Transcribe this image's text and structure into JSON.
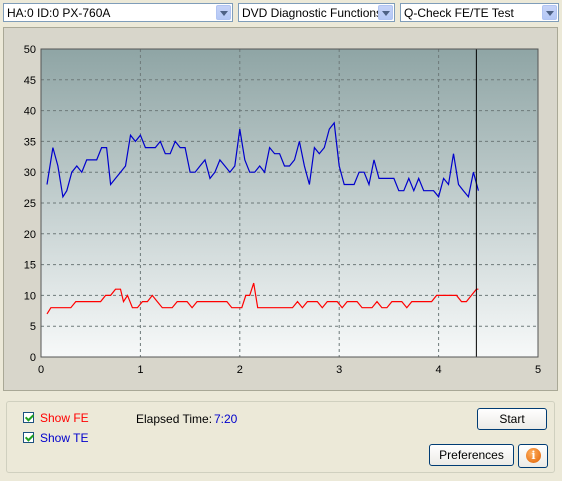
{
  "dropdowns": {
    "drive": "HA:0 ID:0  PX-760A",
    "function": "DVD Diagnostic Functions",
    "test": "Q-Check FE/TE Test"
  },
  "controls": {
    "show_fe_label": "Show FE",
    "show_fe_checked": true,
    "show_te_label": "Show TE",
    "show_te_checked": true,
    "elapsed_label": "Elapsed Time:",
    "elapsed_value": "7:20",
    "start_label": "Start",
    "preferences_label": "Preferences",
    "info_icon": "info-icon"
  },
  "colors": {
    "fe": "#ff0000",
    "te": "#0000cc",
    "plot_top": "#8fa5a5",
    "plot_bottom": "#f7f9f9",
    "value_text": "#0000cc"
  },
  "chart_data": {
    "type": "line",
    "xlim": [
      0,
      5
    ],
    "ylim": [
      0,
      50
    ],
    "x_ticks": [
      "0",
      "1",
      "2",
      "3",
      "4",
      "5"
    ],
    "y_ticks": [
      "0",
      "5",
      "10",
      "15",
      "20",
      "25",
      "30",
      "35",
      "40",
      "45",
      "50"
    ],
    "grid": true,
    "end_marker_x": 4.38,
    "series": [
      {
        "key": "te",
        "points": [
          [
            0.06,
            28
          ],
          [
            0.12,
            34
          ],
          [
            0.17,
            31
          ],
          [
            0.22,
            26
          ],
          [
            0.26,
            27
          ],
          [
            0.31,
            30
          ],
          [
            0.36,
            31
          ],
          [
            0.41,
            30
          ],
          [
            0.46,
            32
          ],
          [
            0.51,
            32
          ],
          [
            0.56,
            32
          ],
          [
            0.61,
            34
          ],
          [
            0.66,
            34
          ],
          [
            0.7,
            28
          ],
          [
            0.75,
            29
          ],
          [
            0.8,
            30
          ],
          [
            0.85,
            31
          ],
          [
            0.9,
            36
          ],
          [
            0.95,
            35
          ],
          [
            1.0,
            36
          ],
          [
            1.05,
            34
          ],
          [
            1.1,
            34
          ],
          [
            1.15,
            34
          ],
          [
            1.2,
            35
          ],
          [
            1.25,
            33
          ],
          [
            1.3,
            33
          ],
          [
            1.35,
            35
          ],
          [
            1.4,
            34
          ],
          [
            1.45,
            34
          ],
          [
            1.5,
            30
          ],
          [
            1.55,
            30
          ],
          [
            1.6,
            31
          ],
          [
            1.65,
            32
          ],
          [
            1.7,
            29
          ],
          [
            1.75,
            30
          ],
          [
            1.8,
            32
          ],
          [
            1.85,
            31
          ],
          [
            1.9,
            30
          ],
          [
            1.95,
            31
          ],
          [
            2.0,
            37
          ],
          [
            2.05,
            32
          ],
          [
            2.1,
            30
          ],
          [
            2.15,
            30
          ],
          [
            2.2,
            31
          ],
          [
            2.25,
            30
          ],
          [
            2.3,
            34
          ],
          [
            2.35,
            33
          ],
          [
            2.4,
            33
          ],
          [
            2.45,
            31
          ],
          [
            2.5,
            31
          ],
          [
            2.55,
            32
          ],
          [
            2.6,
            35
          ],
          [
            2.65,
            31
          ],
          [
            2.7,
            28
          ],
          [
            2.75,
            34
          ],
          [
            2.8,
            33
          ],
          [
            2.85,
            34
          ],
          [
            2.9,
            37
          ],
          [
            2.95,
            38
          ],
          [
            3.0,
            31
          ],
          [
            3.05,
            28
          ],
          [
            3.1,
            28
          ],
          [
            3.15,
            28
          ],
          [
            3.2,
            30
          ],
          [
            3.25,
            30
          ],
          [
            3.3,
            28
          ],
          [
            3.35,
            32
          ],
          [
            3.4,
            29
          ],
          [
            3.45,
            29
          ],
          [
            3.5,
            29
          ],
          [
            3.55,
            29
          ],
          [
            3.6,
            27
          ],
          [
            3.65,
            27
          ],
          [
            3.7,
            29
          ],
          [
            3.75,
            27
          ],
          [
            3.8,
            29
          ],
          [
            3.85,
            27
          ],
          [
            3.9,
            27
          ],
          [
            3.95,
            27
          ],
          [
            4.0,
            26
          ],
          [
            4.05,
            29
          ],
          [
            4.1,
            28
          ],
          [
            4.15,
            33
          ],
          [
            4.2,
            28
          ],
          [
            4.25,
            27
          ],
          [
            4.3,
            26
          ],
          [
            4.35,
            30
          ],
          [
            4.4,
            27
          ]
        ]
      },
      {
        "key": "fe",
        "points": [
          [
            0.06,
            7
          ],
          [
            0.1,
            8
          ],
          [
            0.15,
            8
          ],
          [
            0.2,
            8
          ],
          [
            0.25,
            8
          ],
          [
            0.3,
            8
          ],
          [
            0.35,
            9
          ],
          [
            0.4,
            9
          ],
          [
            0.45,
            9
          ],
          [
            0.5,
            9
          ],
          [
            0.55,
            9
          ],
          [
            0.6,
            9
          ],
          [
            0.65,
            10
          ],
          [
            0.7,
            10
          ],
          [
            0.75,
            11
          ],
          [
            0.8,
            11
          ],
          [
            0.83,
            9
          ],
          [
            0.87,
            10
          ],
          [
            0.92,
            8
          ],
          [
            0.97,
            8
          ],
          [
            1.02,
            9
          ],
          [
            1.07,
            9
          ],
          [
            1.12,
            10
          ],
          [
            1.17,
            9
          ],
          [
            1.22,
            8
          ],
          [
            1.27,
            8
          ],
          [
            1.32,
            8
          ],
          [
            1.37,
            9
          ],
          [
            1.42,
            9
          ],
          [
            1.47,
            9
          ],
          [
            1.52,
            8
          ],
          [
            1.57,
            9
          ],
          [
            1.62,
            9
          ],
          [
            1.67,
            9
          ],
          [
            1.72,
            9
          ],
          [
            1.77,
            9
          ],
          [
            1.82,
            9
          ],
          [
            1.87,
            9
          ],
          [
            1.92,
            8
          ],
          [
            1.97,
            8
          ],
          [
            2.02,
            8
          ],
          [
            2.06,
            10
          ],
          [
            2.1,
            10
          ],
          [
            2.14,
            12
          ],
          [
            2.18,
            8
          ],
          [
            2.23,
            8
          ],
          [
            2.28,
            8
          ],
          [
            2.33,
            8
          ],
          [
            2.38,
            8
          ],
          [
            2.43,
            8
          ],
          [
            2.48,
            8
          ],
          [
            2.53,
            8
          ],
          [
            2.58,
            9
          ],
          [
            2.63,
            8
          ],
          [
            2.68,
            9
          ],
          [
            2.73,
            9
          ],
          [
            2.78,
            9
          ],
          [
            2.83,
            8
          ],
          [
            2.88,
            9
          ],
          [
            2.93,
            9
          ],
          [
            2.98,
            9
          ],
          [
            3.03,
            8
          ],
          [
            3.08,
            9
          ],
          [
            3.13,
            9
          ],
          [
            3.18,
            9
          ],
          [
            3.23,
            8
          ],
          [
            3.28,
            8
          ],
          [
            3.33,
            8
          ],
          [
            3.38,
            9
          ],
          [
            3.43,
            8
          ],
          [
            3.48,
            8
          ],
          [
            3.53,
            9
          ],
          [
            3.58,
            9
          ],
          [
            3.63,
            9
          ],
          [
            3.68,
            8
          ],
          [
            3.73,
            9
          ],
          [
            3.78,
            9
          ],
          [
            3.83,
            9
          ],
          [
            3.88,
            9
          ],
          [
            3.93,
            9
          ],
          [
            3.98,
            10
          ],
          [
            4.03,
            10
          ],
          [
            4.08,
            10
          ],
          [
            4.13,
            10
          ],
          [
            4.18,
            10
          ],
          [
            4.23,
            9
          ],
          [
            4.28,
            9
          ],
          [
            4.33,
            10
          ],
          [
            4.38,
            11
          ],
          [
            4.4,
            11
          ]
        ]
      }
    ]
  }
}
